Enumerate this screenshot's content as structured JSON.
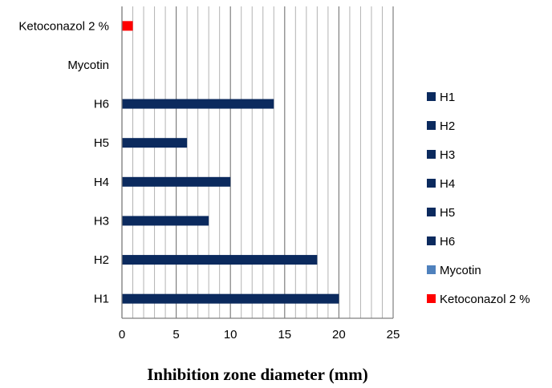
{
  "chart_data": {
    "type": "bar",
    "orientation": "horizontal",
    "categories": [
      "H1",
      "H2",
      "H3",
      "H4",
      "H5",
      "H6",
      "Mycotin",
      "Ketoconazol 2 %"
    ],
    "series": [
      {
        "name": "H1",
        "color": "#0b2a5e",
        "values": [
          20,
          null,
          null,
          null,
          null,
          null,
          null,
          null
        ]
      },
      {
        "name": "H2",
        "color": "#0b2a5e",
        "values": [
          null,
          18,
          null,
          null,
          null,
          null,
          null,
          null
        ]
      },
      {
        "name": "H3",
        "color": "#0b2a5e",
        "values": [
          null,
          null,
          8,
          null,
          null,
          null,
          null,
          null
        ]
      },
      {
        "name": "H4",
        "color": "#0b2a5e",
        "values": [
          null,
          null,
          null,
          10,
          null,
          null,
          null,
          null
        ]
      },
      {
        "name": "H5",
        "color": "#0b2a5e",
        "values": [
          null,
          null,
          null,
          null,
          6,
          null,
          null,
          null
        ]
      },
      {
        "name": "H6",
        "color": "#0b2a5e",
        "values": [
          null,
          null,
          null,
          null,
          null,
          14,
          null,
          null
        ]
      },
      {
        "name": "Mycotin",
        "color": "#4f81bd",
        "values": [
          null,
          null,
          null,
          null,
          null,
          null,
          0,
          null
        ]
      },
      {
        "name": "Ketoconazol 2 %",
        "color": "#ff0000",
        "values": [
          null,
          null,
          null,
          null,
          null,
          null,
          null,
          1
        ]
      }
    ],
    "xlabel": "Inhibition zone diameter (mm)",
    "ylabel": "",
    "xlim": [
      0,
      25
    ],
    "major_ticks": [
      0,
      5,
      10,
      15,
      20,
      25
    ],
    "minor_tick_step": 1,
    "grid": true,
    "legend_position": "right"
  }
}
